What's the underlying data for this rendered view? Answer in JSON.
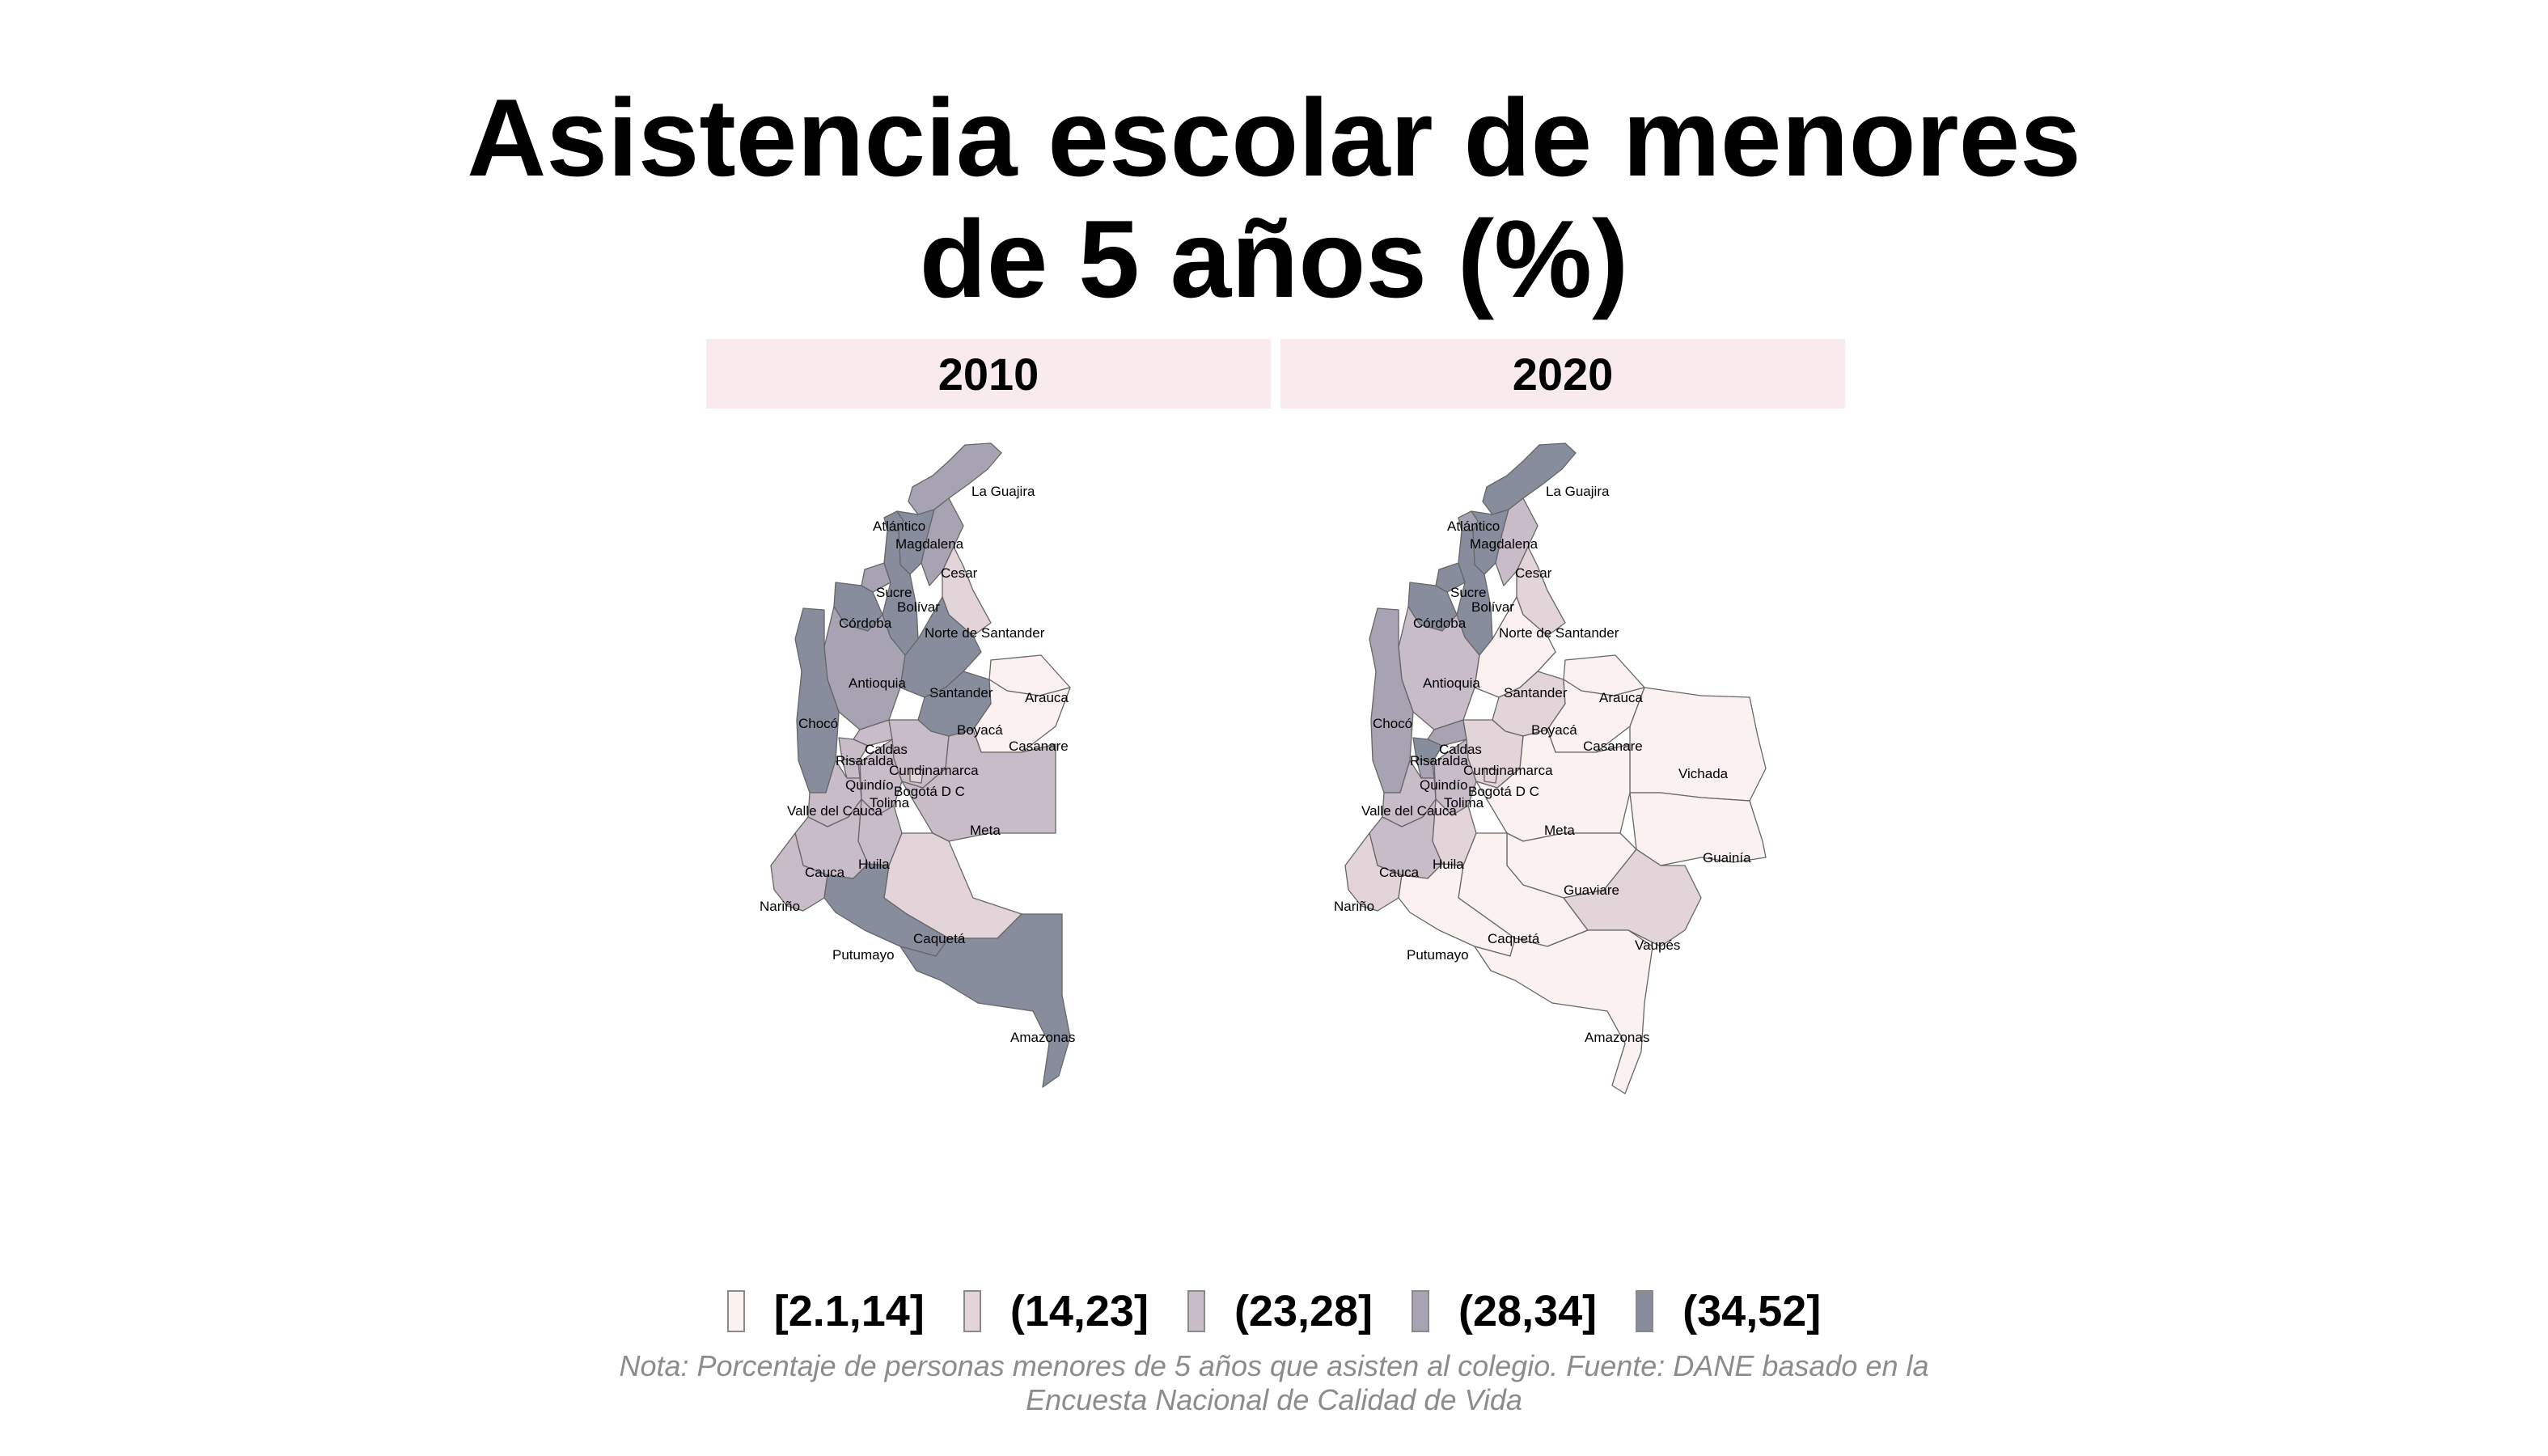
{
  "title_line1": "Asistencia escolar de menores",
  "title_line2": "de 5 años (%)",
  "panels": [
    {
      "year": "2010"
    },
    {
      "year": "2020"
    }
  ],
  "legend": [
    {
      "label": "[2.1,14]",
      "color": "#fcf1f1"
    },
    {
      "label": "(14,23]",
      "color": "#e3d4d9"
    },
    {
      "label": "(23,28]",
      "color": "#c7bcc7"
    },
    {
      "label": "(28,34]",
      "color": "#a7a3b3"
    },
    {
      "label": "(34,52]",
      "color": "#878d9d"
    }
  ],
  "note_line1": "Nota: Porcentaje de personas menores de 5 años que asisten al colegio. Fuente: DANE basado en la",
  "note_line2": "Encuesta Nacional de Calidad de Vida",
  "map_2010_labels": [
    "La Guajira",
    "Atlántico",
    "Magdalena",
    "Cesar",
    "Sucre",
    "Bolívar",
    "Córdoba",
    "Norte de Santander",
    "Antioquia",
    "Santander",
    "Arauca",
    "Chocó",
    "Boyacá",
    "Casanare",
    "Caldas",
    "Risaralda",
    "Cundinamarca",
    "Quindío",
    "Bogotá D C",
    "Tolima",
    "Valle del Cauca",
    "Meta",
    "Huila",
    "Cauca",
    "Nariño",
    "Caquetá",
    "Putumayo",
    "Amazonas"
  ],
  "map_2020_labels": [
    "La Guajira",
    "Atlántico",
    "Magdalena",
    "Cesar",
    "Sucre",
    "Bolívar",
    "Córdoba",
    "Norte de Santander",
    "Antioquia",
    "Santander",
    "Arauca",
    "Chocó",
    "Boyacá",
    "Casanare",
    "Vichada",
    "Caldas",
    "Risaralda",
    "Cundinamarca",
    "Quindío",
    "Bogotá D C",
    "Tolima",
    "Valle del Cauca",
    "Meta",
    "Guainía",
    "Huila",
    "Guaviare",
    "Cauca",
    "Nariño",
    "Caquetá",
    "Vaupés",
    "Putumayo",
    "Amazonas"
  ]
}
